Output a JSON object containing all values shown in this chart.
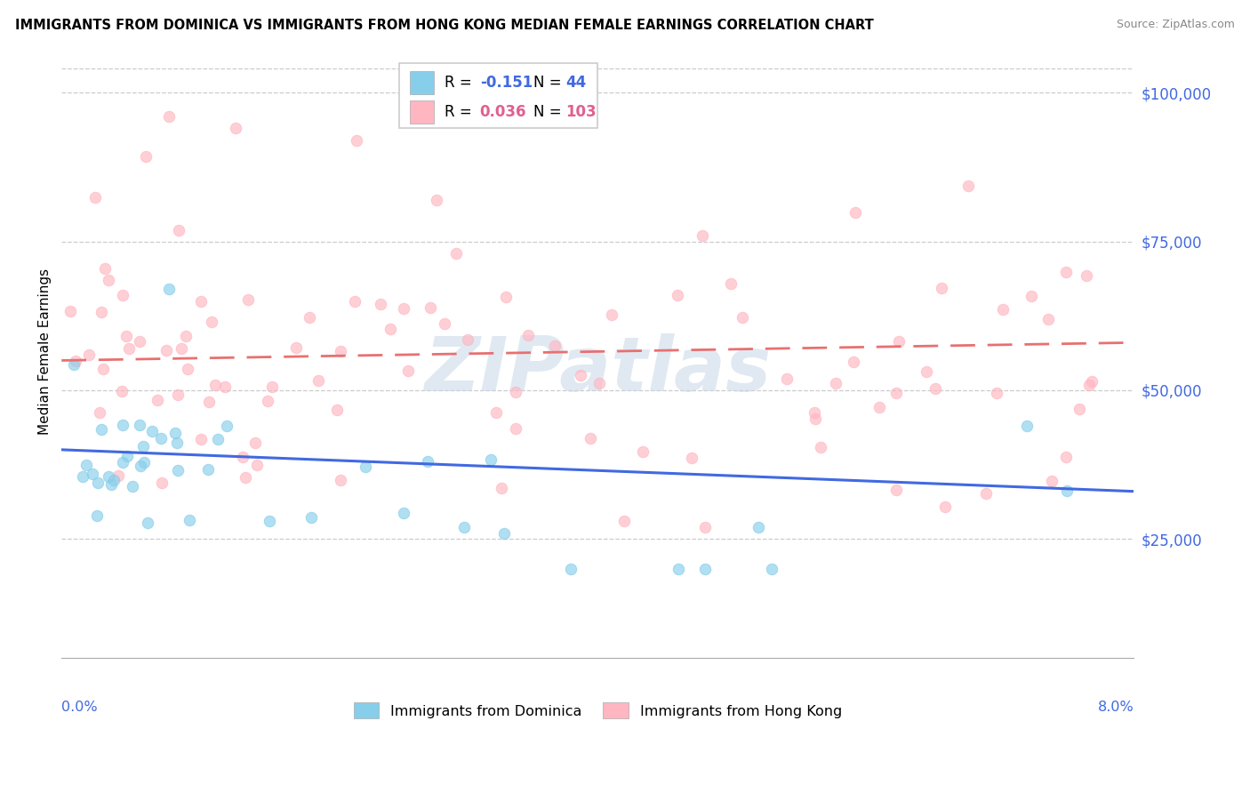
{
  "title": "IMMIGRANTS FROM DOMINICA VS IMMIGRANTS FROM HONG KONG MEDIAN FEMALE EARNINGS CORRELATION CHART",
  "source": "Source: ZipAtlas.com",
  "ylabel": "Median Female Earnings",
  "y_ticks": [
    25000,
    50000,
    75000,
    100000
  ],
  "y_tick_labels": [
    "$25,000",
    "$50,000",
    "$75,000",
    "$100,000"
  ],
  "xmin": 0.0,
  "xmax": 0.08,
  "ymin": 5000,
  "ymax": 108000,
  "color_dominica": "#87CEEB",
  "color_hk": "#FFB6C1",
  "trendline_dominica": "#4169E1",
  "trendline_hk": "#E87070",
  "r_dominica_val": "-0.151",
  "n_dominica_val": "44",
  "r_hk_val": "0.036",
  "n_hk_val": "103",
  "r_color_dominica": "#4169E1",
  "r_color_hk": "#E06090",
  "y_axis_color": "#4169E1",
  "x_axis_color": "#4169E1",
  "watermark": "ZIPatlas",
  "dom_trend_x0": 0.0,
  "dom_trend_x1": 0.08,
  "dom_trend_y0": 40000,
  "dom_trend_y1": 33000,
  "hk_trend_x0": 0.0,
  "hk_trend_x1": 0.08,
  "hk_trend_y0": 55000,
  "hk_trend_y1": 58000
}
